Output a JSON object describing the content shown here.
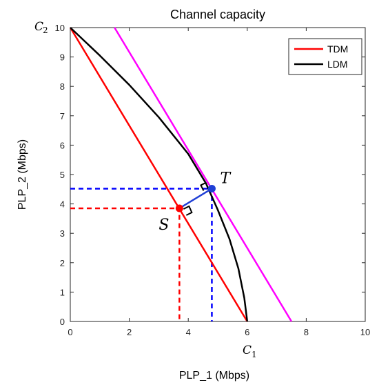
{
  "chart_data": {
    "type": "line",
    "title": "Channel capacity",
    "xlabel": "PLP_1 (Mbps)",
    "ylabel": "PLP_2 (Mbps)",
    "xlim": [
      0,
      10
    ],
    "ylim": [
      0,
      10
    ],
    "x_ticks": [
      0,
      2,
      4,
      6,
      8,
      10
    ],
    "y_ticks": [
      0,
      1,
      2,
      3,
      4,
      5,
      6,
      7,
      8,
      9,
      10
    ],
    "grid": false,
    "legend_position": "top-right",
    "series": [
      {
        "name": "TDM",
        "color": "#ff0000",
        "x": [
          0,
          6
        ],
        "y": [
          10,
          0
        ]
      },
      {
        "name": "LDM",
        "color": "#000000",
        "x": [
          0,
          1,
          2,
          3,
          4,
          4.6,
          5.0,
          5.4,
          5.7,
          5.9,
          6.0
        ],
        "y": [
          10,
          9.05,
          8.05,
          6.95,
          5.7,
          4.7,
          3.8,
          2.8,
          1.8,
          0.8,
          0
        ]
      }
    ],
    "lines": [
      {
        "kind": "tangent",
        "color": "#ff00ff",
        "x": [
          1.5,
          7.5
        ],
        "y": [
          10,
          0
        ]
      },
      {
        "kind": "S-to-T",
        "color": "#1f3fd6",
        "x": [
          3.7,
          4.8
        ],
        "y": [
          3.85,
          4.52
        ]
      }
    ],
    "dashed_lines": [
      {
        "color": "#ff0000",
        "x": [
          0,
          3.7,
          3.7
        ],
        "y": [
          3.85,
          3.85,
          0
        ]
      },
      {
        "color": "#0000ff",
        "x": [
          0,
          4.8,
          4.8
        ],
        "y": [
          4.52,
          4.52,
          0
        ]
      }
    ],
    "points": [
      {
        "label": "S",
        "x": 3.7,
        "y": 3.85,
        "color": "#ff0000"
      },
      {
        "label": "T",
        "x": 4.8,
        "y": 4.52,
        "color": "#1f3fd6"
      }
    ],
    "annotations": {
      "y_axis_symbol": "C",
      "y_axis_subscript": "2",
      "x_axis_symbol": "C",
      "x_axis_subscript": "1"
    }
  }
}
